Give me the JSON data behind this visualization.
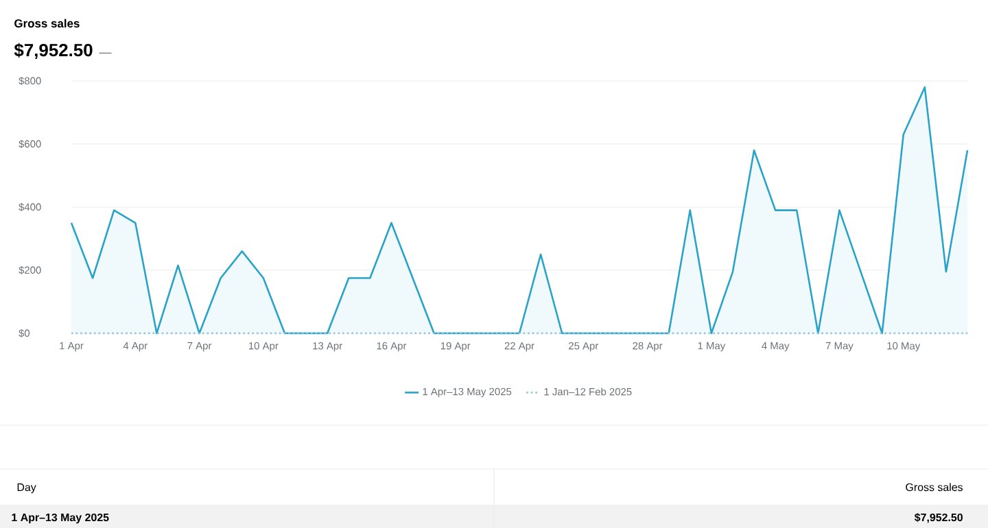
{
  "chart_data": {
    "type": "area",
    "title": "Gross sales",
    "subtitle": "$7,952.50",
    "categories": [
      "1 Apr",
      null,
      null,
      "4 Apr",
      null,
      null,
      "7 Apr",
      null,
      null,
      "10 Apr",
      null,
      null,
      "13 Apr",
      null,
      null,
      "16 Apr",
      null,
      null,
      "19 Apr",
      null,
      null,
      "22 Apr",
      null,
      null,
      "25 Apr",
      null,
      null,
      "28 Apr",
      null,
      null,
      "1 May",
      null,
      null,
      "4 May",
      null,
      null,
      "7 May",
      null,
      null,
      "10 May",
      null,
      null,
      null
    ],
    "series": [
      {
        "name": "1 Apr–13 May 2025",
        "color": "#29a3c8",
        "line_style": "solid",
        "values": [
          350,
          175,
          390,
          350,
          0,
          215,
          0,
          175,
          260,
          175,
          0,
          0,
          0,
          175,
          175,
          350,
          175,
          0,
          0,
          0,
          0,
          0,
          250,
          0,
          0,
          0,
          0,
          0,
          0,
          390,
          0,
          195,
          580,
          390,
          390,
          0,
          390,
          195,
          0,
          630,
          780,
          195,
          580
        ]
      },
      {
        "name": "1 Jan–12 Feb 2025",
        "type": "line",
        "color": "#8fc3d9",
        "line_style": "dotted",
        "values": [
          0,
          0,
          0,
          0,
          0,
          0,
          0,
          0,
          0,
          0,
          0,
          0,
          0,
          0,
          0,
          0,
          0,
          0,
          0,
          0,
          0,
          0,
          0,
          0,
          0,
          0,
          0,
          0,
          0,
          0,
          0,
          0,
          0,
          0,
          0,
          0,
          0,
          0,
          0,
          0,
          0,
          0,
          0
        ]
      }
    ],
    "ylim": [
      0,
      800
    ],
    "yticks": [
      {
        "value": 0,
        "label": "$0"
      },
      {
        "value": 200,
        "label": "$200"
      },
      {
        "value": 400,
        "label": "$400"
      },
      {
        "value": 600,
        "label": "$600"
      },
      {
        "value": 800,
        "label": "$800"
      }
    ],
    "grid": "y",
    "legend": "bottom",
    "annotations": [
      "—",
      "Day",
      "Gross sales",
      "1 Apr–13 May 2025",
      "$7,952.50"
    ]
  }
}
